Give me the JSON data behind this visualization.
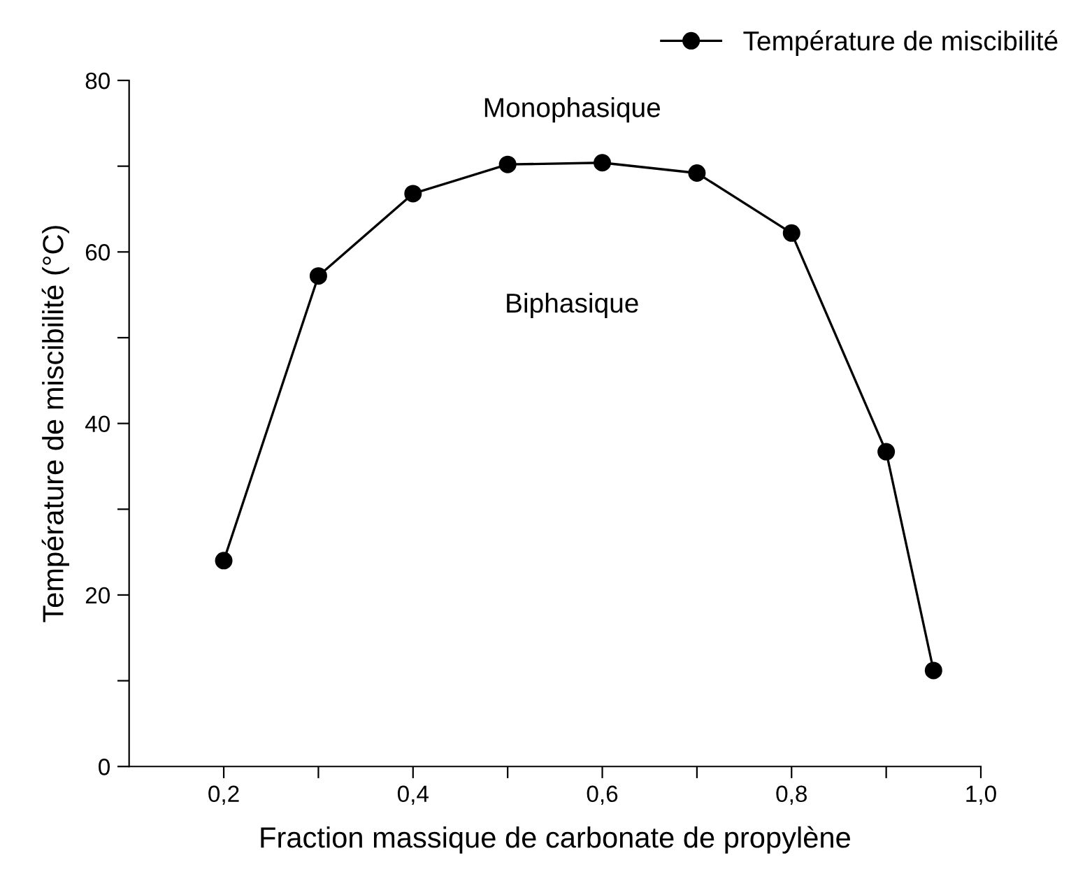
{
  "chart_data": {
    "type": "line",
    "xlabel": "Fraction massique de carbonate de propylène",
    "ylabel": "Température de miscibilité (°C)",
    "x": [
      0.2,
      0.3,
      0.4,
      0.5,
      0.6,
      0.7,
      0.8,
      0.9,
      0.95
    ],
    "series": [
      {
        "name": "Température de miscibilité",
        "color": "#000000",
        "values": [
          24.0,
          57.2,
          66.8,
          70.2,
          70.4,
          69.2,
          62.2,
          36.7,
          11.2
        ]
      }
    ],
    "xlim": [
      0.1,
      1.0
    ],
    "ylim": [
      0,
      80
    ],
    "xticks": [
      {
        "value": 0.2,
        "label": "0,2"
      },
      {
        "value": 0.3,
        "label": null
      },
      {
        "value": 0.4,
        "label": "0,4"
      },
      {
        "value": 0.5,
        "label": null
      },
      {
        "value": 0.6,
        "label": "0,6"
      },
      {
        "value": 0.7,
        "label": null
      },
      {
        "value": 0.8,
        "label": "0,8"
      },
      {
        "value": 0.9,
        "label": null
      },
      {
        "value": 1.0,
        "label": "1,0"
      }
    ],
    "yticks": [
      0,
      {
        "value": 10,
        "label": null
      },
      20,
      {
        "value": 30,
        "label": null
      },
      40,
      {
        "value": 50,
        "label": null
      },
      60,
      {
        "value": 70,
        "label": null
      },
      80
    ],
    "annotations": [
      "Monophasique",
      "Biphasique"
    ],
    "marker": "circle",
    "line_style": "solid",
    "legend": "top right",
    "grid": false
  }
}
